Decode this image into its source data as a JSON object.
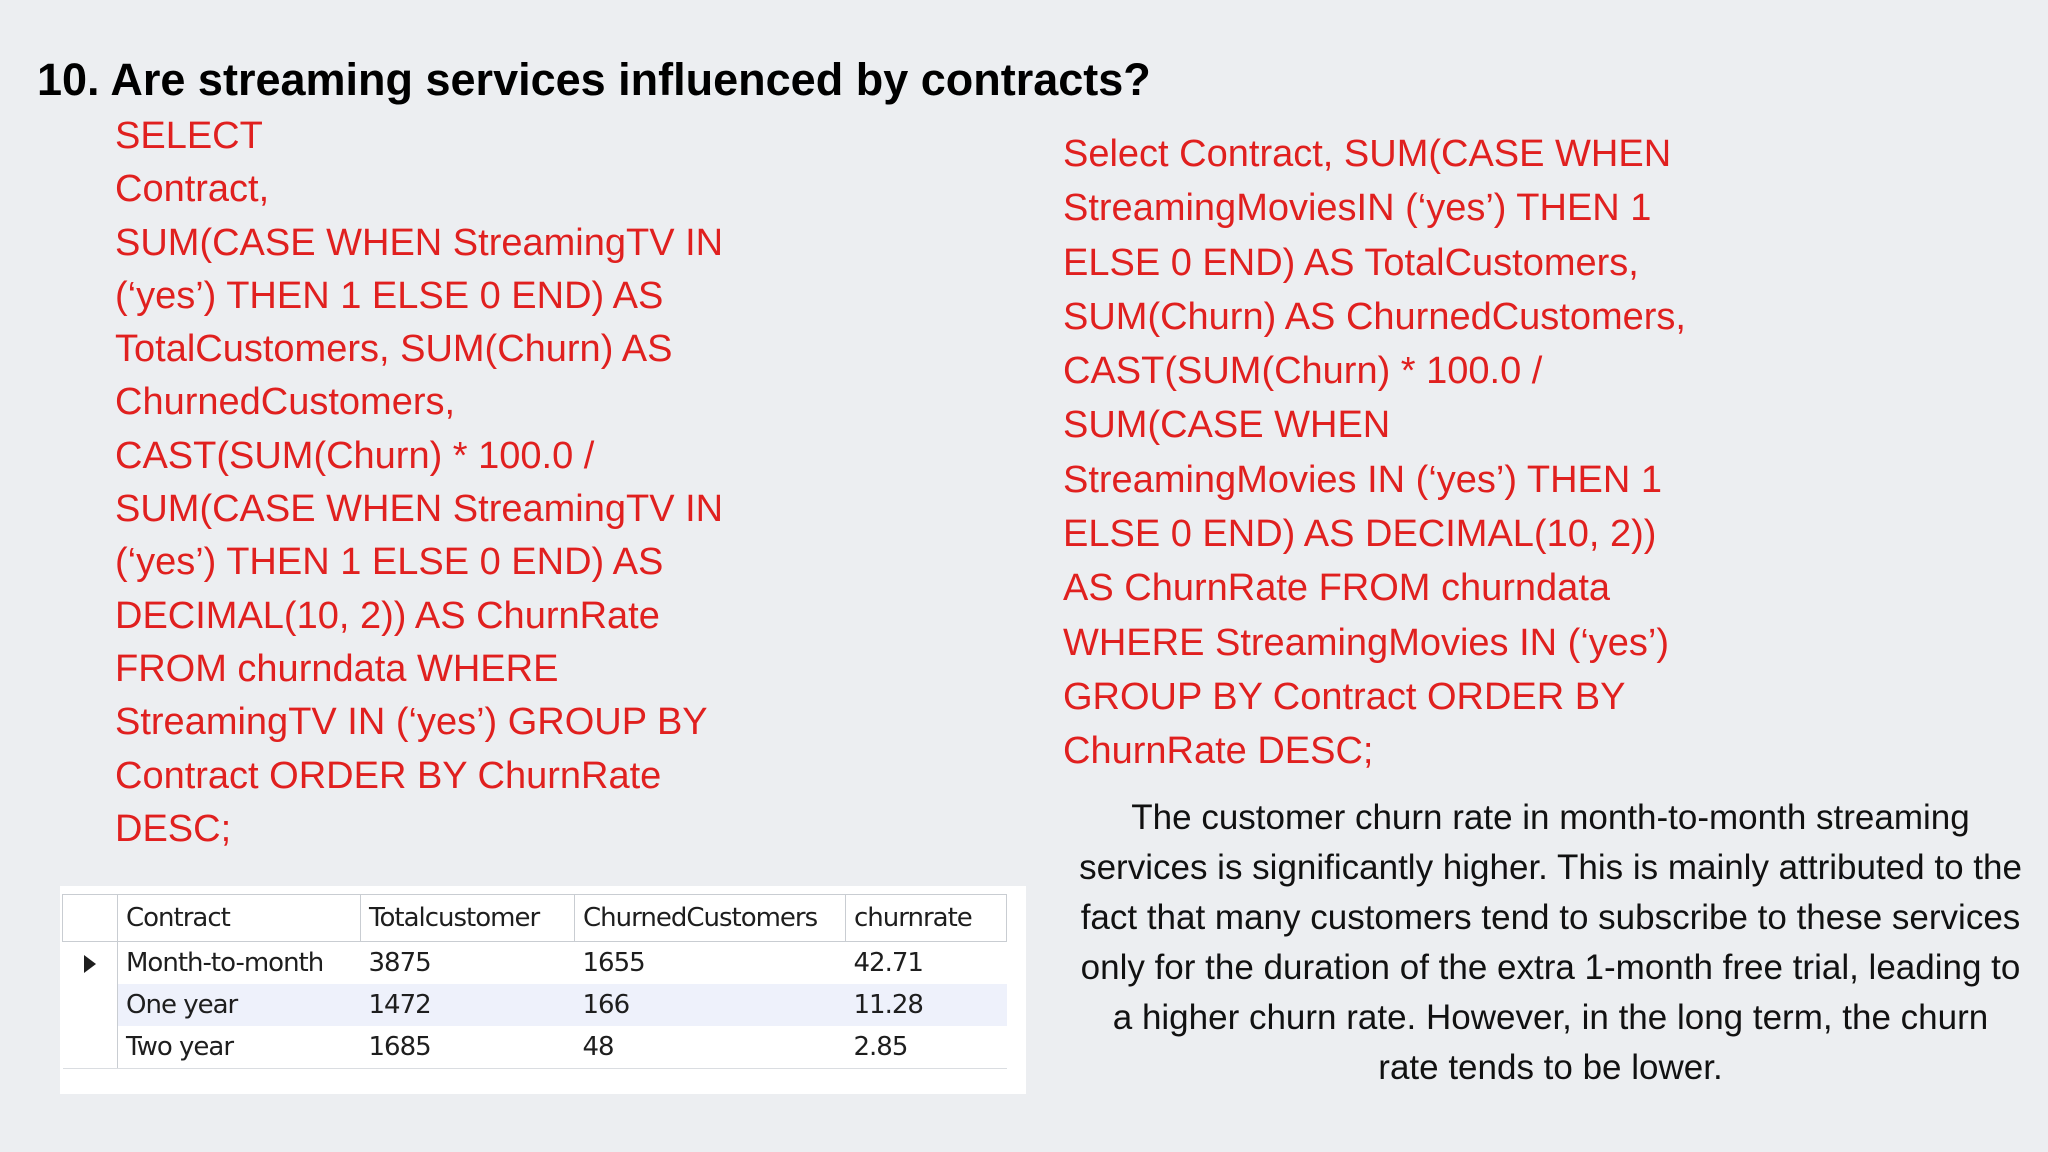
{
  "title": "10. Are streaming services influenced by contracts?",
  "query_streaming_tv": [
    "SELECT",
    "Contract,",
    "SUM(CASE WHEN StreamingTV IN",
    "(‘yes’) THEN 1 ELSE 0 END) AS",
    "TotalCustomers, SUM(Churn) AS",
    "ChurnedCustomers,",
    "CAST(SUM(Churn) * 100.0 /",
    "SUM(CASE WHEN StreamingTV IN",
    "(‘yes’) THEN 1 ELSE 0 END) AS",
    "DECIMAL(10, 2)) AS ChurnRate",
    "FROM churndata WHERE",
    "StreamingTV IN (‘yes’) GROUP BY",
    "Contract ORDER BY ChurnRate",
    "DESC;"
  ],
  "query_streaming_movies": [
    "Select Contract, SUM(CASE WHEN",
    "StreamingMoviesIN (‘yes’) THEN 1",
    "ELSE 0 END) AS TotalCustomers,",
    "SUM(Churn) AS ChurnedCustomers,",
    "CAST(SUM(Churn) * 100.0 /",
    "SUM(CASE WHEN",
    "StreamingMovies IN (‘yes’) THEN 1",
    "ELSE 0 END) AS DECIMAL(10, 2))",
    "AS ChurnRate FROM churndata",
    "WHERE StreamingMovies IN (‘yes’)",
    "GROUP BY Contract ORDER BY",
    "ChurnRate DESC;"
  ],
  "result_grid": {
    "columns": [
      "Contract",
      "Totalcustomer",
      "ChurnedCustomers",
      "churnrate"
    ],
    "rows": [
      [
        "Month-to-month",
        "3875",
        "1655",
        "42.71"
      ],
      [
        "One year",
        "1472",
        "166",
        "11.28"
      ],
      [
        "Two year",
        "1685",
        "48",
        "2.85"
      ]
    ],
    "selected_row_index": 0
  },
  "summary": [
    "The customer churn rate in month-to-month streaming",
    "services is significantly higher. This is mainly attributed to the",
    "fact that many customers tend to subscribe to these services",
    "only for the duration of the extra 1-month free trial, leading to",
    "a higher churn rate. However, in the long term, the churn",
    "rate tends to be lower."
  ],
  "colors": {
    "background": "#eceef1",
    "sql_text": "#e0201f",
    "title_text": "#000000"
  }
}
